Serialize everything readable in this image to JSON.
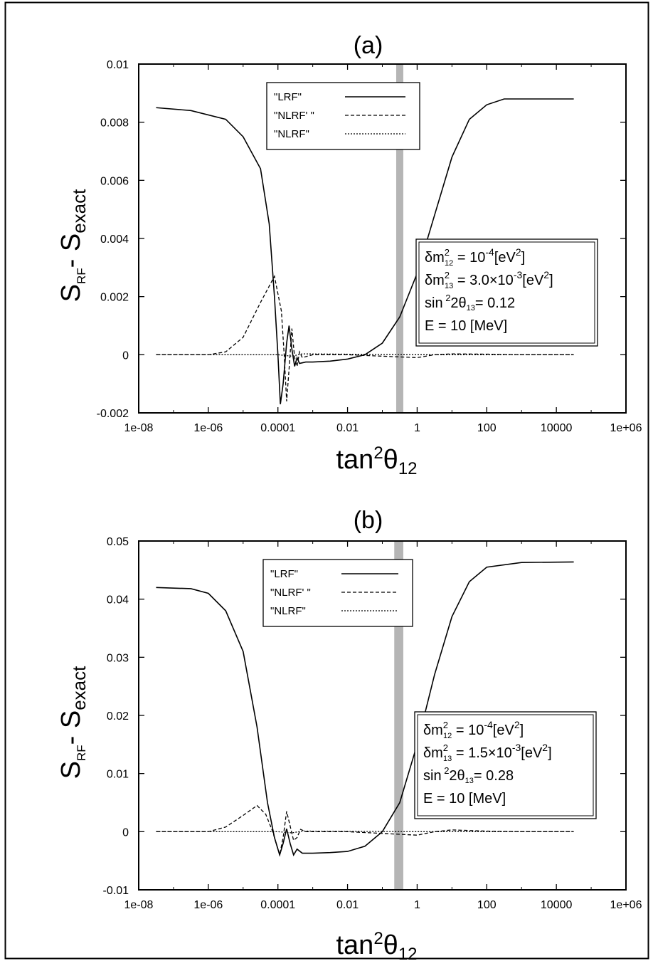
{
  "chart_data": [
    {
      "type": "line",
      "title": "(a)",
      "xlabel": {
        "base": "tan",
        "sup": "2",
        "sym": "θ",
        "sub": "12"
      },
      "ylabel": {
        "main": "S",
        "sub": "RF",
        "mid": "- S",
        "sub2": "exact"
      },
      "xscale": "log",
      "xlim": [
        1e-08,
        1000000
      ],
      "ylim": [
        -0.002,
        0.01
      ],
      "xticks": [
        "1e-08",
        "1e-06",
        "0.0001",
        "0.01",
        "1",
        "100",
        "10000",
        "1e+06"
      ],
      "yticks": [
        "-0.002",
        "0",
        "0.002",
        "0.004",
        "0.006",
        "0.008",
        "0.01"
      ],
      "band": {
        "x": [
          0.25,
          0.4
        ],
        "color": "#b5b5b5"
      },
      "legend": {
        "placement": "top-center",
        "entries": [
          {
            "label": "\"LRF\"",
            "dash": "solid"
          },
          {
            "label": "\"NLRF' \"",
            "dash": "dashed"
          },
          {
            "label": "\"NLRF\"",
            "dash": "dotted"
          }
        ]
      },
      "info": [
        {
          "pre": "δm",
          "sup": "2",
          "sub": "12",
          "post": " = 10",
          "sup2": "-4",
          "post2": "[eV",
          "sup3": "2",
          "post3": "]"
        },
        {
          "pre": "δm",
          "sup": "2",
          "sub": "13",
          "post": " = 3.0×10",
          "sup2": "-3",
          "post2": "[eV",
          "sup3": "2",
          "post3": "]"
        },
        {
          "pre": "sin",
          "sup": " 2",
          "sub": "",
          "post": "2θ",
          "sub2": "13",
          "post2": "=  0.12"
        },
        {
          "pre": "E = 10 [MeV]"
        }
      ],
      "series": [
        {
          "name": "\"LRF\"",
          "dash": "solid",
          "points": [
            [
              -7.5,
              0.0085
            ],
            [
              -6.5,
              0.0084
            ],
            [
              -5.5,
              0.0081
            ],
            [
              -5,
              0.0075
            ],
            [
              -4.5,
              0.0064
            ],
            [
              -4.25,
              0.0045
            ],
            [
              -4.1,
              0.002
            ],
            [
              -4,
              0
            ],
            [
              -3.93,
              -0.0017
            ],
            [
              -3.85,
              -0.001
            ],
            [
              -3.75,
              0.0004
            ],
            [
              -3.68,
              0.001
            ],
            [
              -3.6,
              0.0002
            ],
            [
              -3.52,
              -0.0004
            ],
            [
              -3.45,
              -0.0001
            ],
            [
              -3.38,
              -0.0003
            ],
            [
              -3.2,
              -0.00025
            ],
            [
              -3,
              -0.00025
            ],
            [
              -2.5,
              -0.00022
            ],
            [
              -2,
              -0.00015
            ],
            [
              -1.5,
              0
            ],
            [
              -1,
              0.0004
            ],
            [
              -0.5,
              0.0013
            ],
            [
              0,
              0.0028
            ],
            [
              0.5,
              0.0048
            ],
            [
              1,
              0.0068
            ],
            [
              1.5,
              0.0081
            ],
            [
              2,
              0.0086
            ],
            [
              2.5,
              0.0088
            ],
            [
              3.5,
              0.0088
            ],
            [
              4.5,
              0.0088
            ]
          ]
        },
        {
          "name": "\"NLRF' \"",
          "dash": "dashed",
          "points": [
            [
              -7.5,
              0
            ],
            [
              -6,
              0
            ],
            [
              -5.5,
              0.0001
            ],
            [
              -5,
              0.0006
            ],
            [
              -4.5,
              0.0018
            ],
            [
              -4.1,
              0.0027
            ],
            [
              -3.9,
              0.0015
            ],
            [
              -3.82,
              0
            ],
            [
              -3.75,
              -0.0016
            ],
            [
              -3.68,
              -0.0005
            ],
            [
              -3.6,
              0.0009
            ],
            [
              -3.52,
              -0.0001
            ],
            [
              -3.45,
              -0.0004
            ],
            [
              -3.38,
              0.0001
            ],
            [
              -3.3,
              -0.0001
            ],
            [
              -3,
              0
            ],
            [
              -2,
              0
            ],
            [
              -1,
              -5e-05
            ],
            [
              0,
              -0.0001
            ],
            [
              0.5,
              0
            ],
            [
              1,
              3e-05
            ],
            [
              2,
              2e-05
            ],
            [
              3,
              0
            ],
            [
              4.5,
              0
            ]
          ]
        },
        {
          "name": "\"NLRF\"",
          "dash": "dotted",
          "points": [
            [
              -7.5,
              0
            ],
            [
              -4,
              0
            ],
            [
              -3.6,
              -5e-05
            ],
            [
              -3.3,
              3e-05
            ],
            [
              0,
              0
            ],
            [
              4.5,
              0
            ]
          ]
        }
      ]
    },
    {
      "type": "line",
      "title": "(b)",
      "xlabel": {
        "base": "tan",
        "sup": "2",
        "sym": "θ",
        "sub": "12"
      },
      "ylabel": {
        "main": "S",
        "sub": "RF",
        "mid": "- S",
        "sub2": "exact"
      },
      "xscale": "log",
      "xlim": [
        1e-08,
        1000000
      ],
      "ylim": [
        -0.01,
        0.05
      ],
      "xticks": [
        "1e-08",
        "1e-06",
        "0.0001",
        "0.01",
        "1",
        "100",
        "10000",
        "1e+06"
      ],
      "yticks": [
        "-0.01",
        "0",
        "0.01",
        "0.02",
        "0.03",
        "0.04",
        "0.05"
      ],
      "band": {
        "x": [
          0.22,
          0.4
        ],
        "color": "#b5b5b5"
      },
      "legend": {
        "placement": "top-center",
        "entries": [
          {
            "label": "\"LRF\"",
            "dash": "solid"
          },
          {
            "label": "\"NLRF' \"",
            "dash": "dashed"
          },
          {
            "label": "\"NLRF\"",
            "dash": "dotted"
          }
        ]
      },
      "info": [
        {
          "pre": "δm",
          "sup": "2",
          "sub": "12",
          "post": " = 10",
          "sup2": "-4",
          "post2": "[eV",
          "sup3": "2",
          "post3": "]"
        },
        {
          "pre": "δm",
          "sup": "2",
          "sub": "13",
          "post": " = 1.5×10",
          "sup2": "-3",
          "post2": "[eV",
          "sup3": "2",
          "post3": "]"
        },
        {
          "pre": "sin",
          "sup": " 2",
          "sub": "",
          "post": "2θ",
          "sub2": "13",
          "post2": "=  0.28"
        },
        {
          "pre": "E = 10 [MeV]"
        }
      ],
      "series": [
        {
          "name": "\"LRF\"",
          "dash": "solid",
          "points": [
            [
              -7.5,
              0.042
            ],
            [
              -6.5,
              0.0418
            ],
            [
              -6,
              0.041
            ],
            [
              -5.5,
              0.038
            ],
            [
              -5,
              0.031
            ],
            [
              -4.6,
              0.018
            ],
            [
              -4.3,
              0.005
            ],
            [
              -4.1,
              -0.001
            ],
            [
              -3.95,
              -0.004
            ],
            [
              -3.85,
              -0.002
            ],
            [
              -3.75,
              0.0005
            ],
            [
              -3.65,
              -0.002
            ],
            [
              -3.55,
              -0.004
            ],
            [
              -3.45,
              -0.003
            ],
            [
              -3.3,
              -0.0037
            ],
            [
              -3,
              -0.0037
            ],
            [
              -2.5,
              -0.0036
            ],
            [
              -2,
              -0.0034
            ],
            [
              -1.5,
              -0.0025
            ],
            [
              -1,
              0
            ],
            [
              -0.5,
              0.005
            ],
            [
              0,
              0.015
            ],
            [
              0.5,
              0.027
            ],
            [
              1,
              0.037
            ],
            [
              1.5,
              0.043
            ],
            [
              2,
              0.0455
            ],
            [
              3,
              0.0463
            ],
            [
              4.5,
              0.0464
            ]
          ]
        },
        {
          "name": "\"NLRF' \"",
          "dash": "dashed",
          "points": [
            [
              -7.5,
              0
            ],
            [
              -6,
              0
            ],
            [
              -5.5,
              0.0008
            ],
            [
              -5,
              0.0028
            ],
            [
              -4.6,
              0.0045
            ],
            [
              -4.35,
              0.003
            ],
            [
              -4.15,
              0
            ],
            [
              -3.95,
              -0.004
            ],
            [
              -3.85,
              -0.001
            ],
            [
              -3.75,
              0.0035
            ],
            [
              -3.65,
              0.001
            ],
            [
              -3.55,
              -0.0015
            ],
            [
              -3.45,
              -0.001
            ],
            [
              -3.35,
              0.0004
            ],
            [
              -3.2,
              0
            ],
            [
              -2,
              0
            ],
            [
              -1,
              -0.0003
            ],
            [
              0,
              -0.0006
            ],
            [
              0.5,
              0
            ],
            [
              1,
              0.0003
            ],
            [
              2,
              0.0001
            ],
            [
              3,
              0
            ],
            [
              4.5,
              0
            ]
          ]
        },
        {
          "name": "\"NLRF\"",
          "dash": "dotted",
          "points": [
            [
              -7.5,
              0
            ],
            [
              -4,
              0
            ],
            [
              -3.6,
              -0.0002
            ],
            [
              -3.3,
              0.0001
            ],
            [
              0,
              0
            ],
            [
              4.5,
              0
            ]
          ]
        }
      ]
    }
  ]
}
